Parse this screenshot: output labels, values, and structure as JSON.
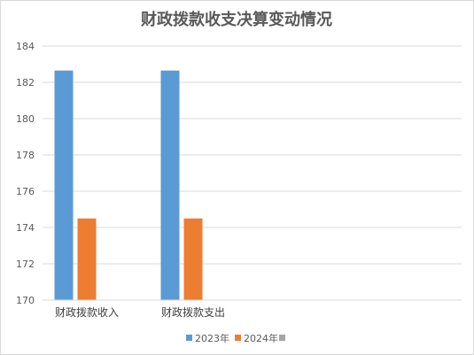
{
  "chart_data": {
    "type": "bar",
    "title": "财政拨款收支决算变动情况",
    "categories": [
      "财政拨款收入",
      "财政拨款支出"
    ],
    "series": [
      {
        "name": "2023年",
        "color": "#5B9BD5",
        "values": [
          182.65,
          182.65
        ]
      },
      {
        "name": "2024年",
        "color": "#ED7D31",
        "values": [
          174.5,
          174.5
        ]
      },
      {
        "name": "",
        "color": "#A5A5A5",
        "values": [
          null,
          null
        ]
      }
    ],
    "ylim": [
      170,
      184
    ],
    "yticks": [
      170,
      172,
      174,
      176,
      178,
      180,
      182,
      184
    ],
    "ytick_labels": [
      "170",
      "172",
      "174",
      "176",
      "178",
      "180",
      "182",
      "184"
    ],
    "grid": true,
    "legend_position": "bottom"
  }
}
